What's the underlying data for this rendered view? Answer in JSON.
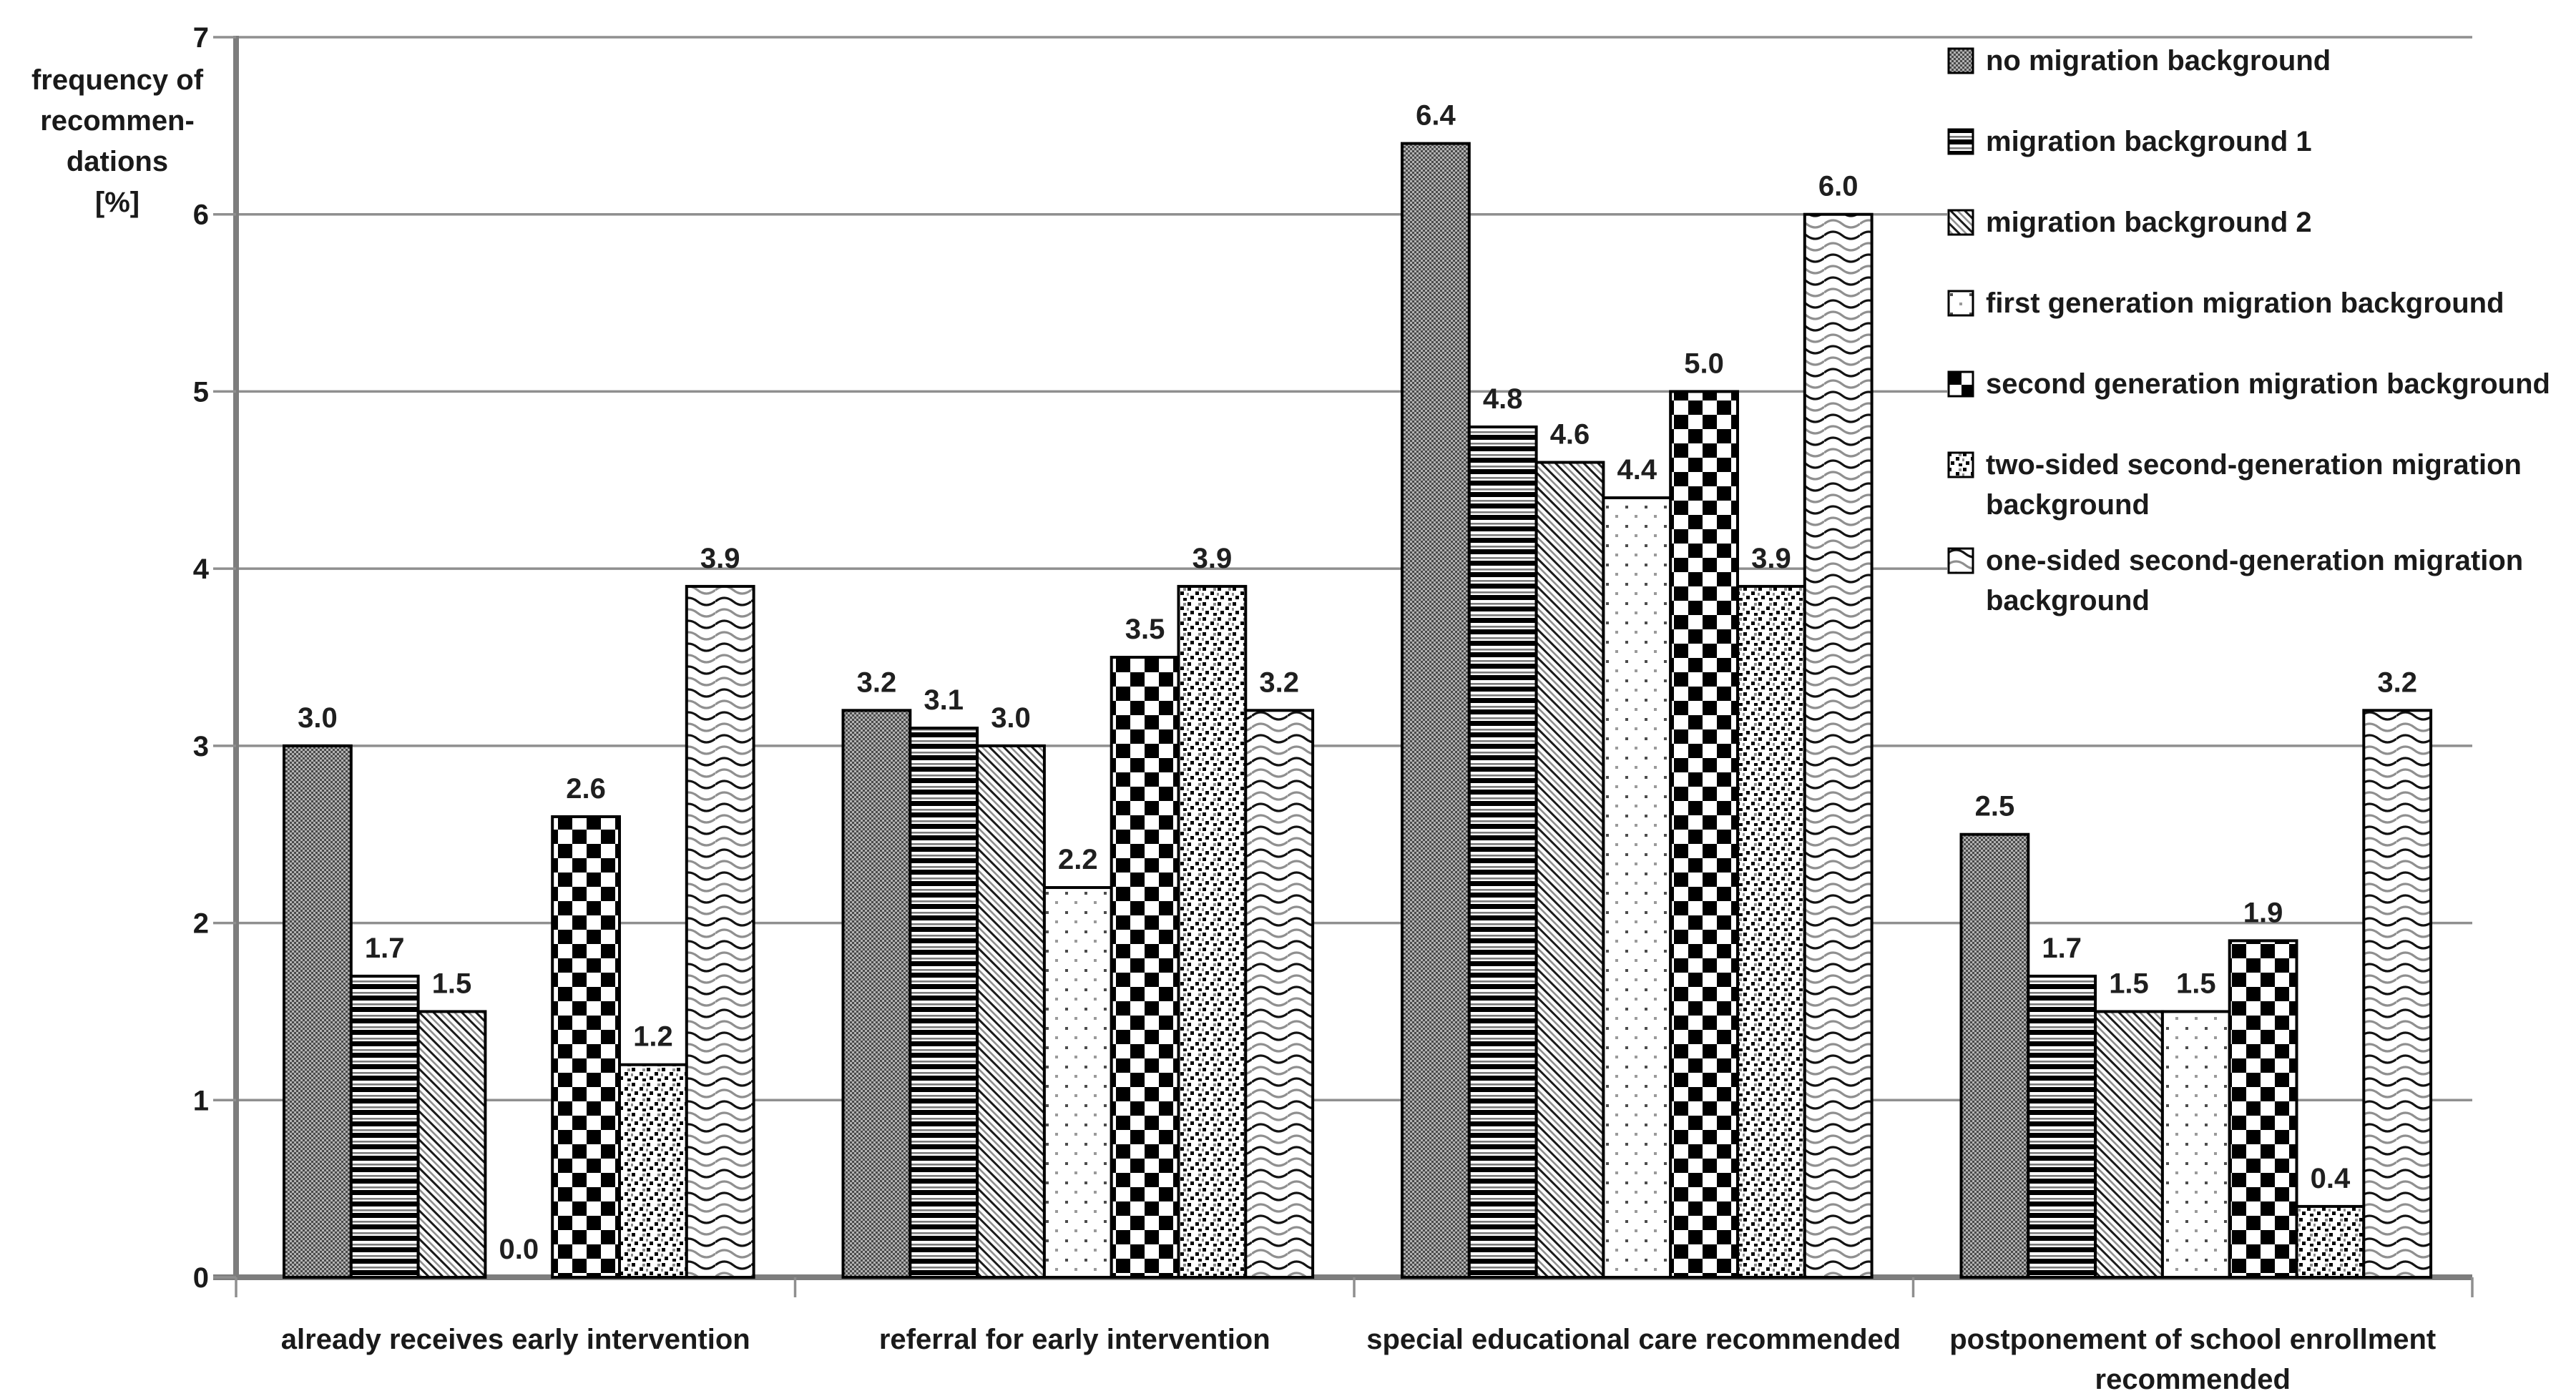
{
  "chart_data": {
    "type": "bar",
    "title": "",
    "ylabel_lines": [
      "frequency of",
      "recommen-",
      "dations",
      "[%]"
    ],
    "ylim": [
      0,
      7
    ],
    "ytick_step": 1,
    "yticks": [
      0,
      1,
      2,
      3,
      4,
      5,
      6,
      7
    ],
    "grid": "horizontal-on",
    "legend_position": "top-right",
    "value_labels": "one-decimal-above-bars",
    "categories": [
      {
        "lines": [
          "already receives early intervention"
        ]
      },
      {
        "lines": [
          "referral for early intervention"
        ]
      },
      {
        "lines": [
          "special educational care recommended"
        ]
      },
      {
        "lines": [
          "postponement of school enrollment",
          "recommended"
        ]
      }
    ],
    "series": [
      {
        "name": "no migration background",
        "pattern": "gray-checker",
        "values": [
          3.0,
          3.2,
          6.4,
          2.5
        ]
      },
      {
        "name": "migration background 1",
        "pattern": "horizontal-stripes",
        "values": [
          1.7,
          3.1,
          4.8,
          1.7
        ]
      },
      {
        "name": "migration background 2",
        "pattern": "diagonal-stripes",
        "values": [
          1.5,
          3.0,
          4.6,
          1.5
        ]
      },
      {
        "name": "first generation migration background",
        "pattern": "sparse-dots",
        "values": [
          0.0,
          2.2,
          4.4,
          1.5
        ]
      },
      {
        "name": "second generation migration background",
        "pattern": "checkerboard",
        "values": [
          2.6,
          3.5,
          5.0,
          1.9
        ]
      },
      {
        "name": "two-sided second-generation migration background",
        "pattern": "dense-specks",
        "values": [
          1.2,
          3.9,
          3.9,
          0.4
        ]
      },
      {
        "name": "one-sided second-generation migration background",
        "pattern": "waves",
        "values": [
          3.9,
          3.2,
          6.0,
          3.2
        ]
      }
    ]
  },
  "legend": {
    "items": [
      {
        "lines": [
          "no migration background"
        ],
        "pattern": "gray-checker"
      },
      {
        "lines": [
          "migration background 1"
        ],
        "pattern": "horizontal-stripes"
      },
      {
        "lines": [
          "migration background 2"
        ],
        "pattern": "diagonal-stripes"
      },
      {
        "lines": [
          "first generation migration background"
        ],
        "pattern": "sparse-dots"
      },
      {
        "lines": [
          "second generation migration background"
        ],
        "pattern": "checkerboard"
      },
      {
        "lines": [
          "two-sided second-generation migration",
          "background"
        ],
        "pattern": "dense-specks"
      },
      {
        "lines": [
          "one-sided second-generation migration",
          "background"
        ],
        "pattern": "waves"
      }
    ]
  },
  "colors": {
    "background": "#ffffff",
    "bar_border": "#000000",
    "gridline": "#8f8f8f",
    "axis": "#7d7d7d",
    "text": "#1a1a1a",
    "pattern_dark": "#1a1a1a",
    "pattern_gray": "#8f8f8f"
  }
}
